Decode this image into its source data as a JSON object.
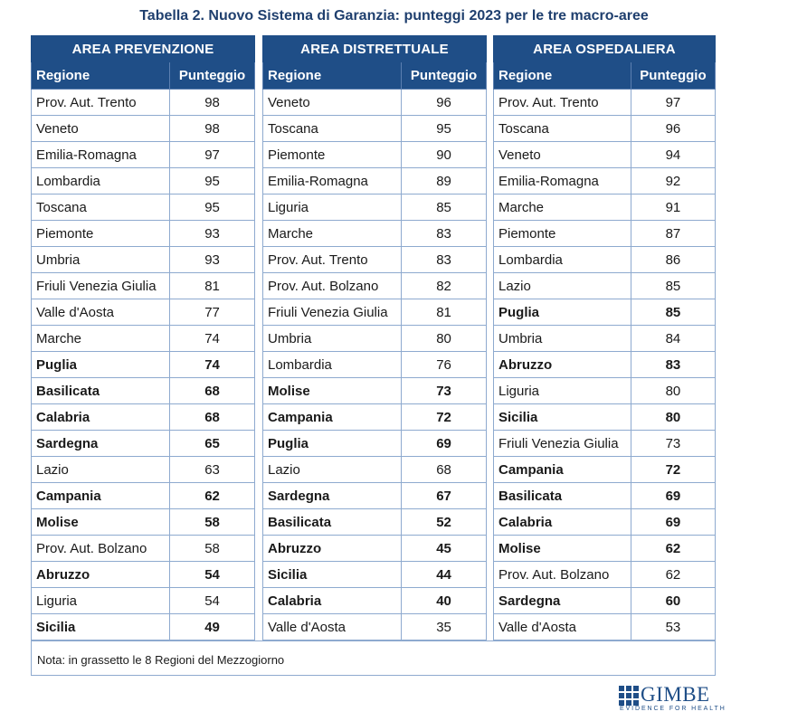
{
  "title": "Tabella 2. Nuovo Sistema di Garanzia: punteggi 2023 per le tre macro-aree",
  "column_headers": {
    "region": "Regione",
    "score": "Punteggio"
  },
  "areas": [
    {
      "name": "AREA PREVENZIONE",
      "rows": [
        {
          "region": "Prov. Aut. Trento",
          "score": "98",
          "bold": false
        },
        {
          "region": "Veneto",
          "score": "98",
          "bold": false
        },
        {
          "region": "Emilia-Romagna",
          "score": "97",
          "bold": false
        },
        {
          "region": "Lombardia",
          "score": "95",
          "bold": false
        },
        {
          "region": "Toscana",
          "score": "95",
          "bold": false
        },
        {
          "region": "Piemonte",
          "score": "93",
          "bold": false
        },
        {
          "region": "Umbria",
          "score": "93",
          "bold": false
        },
        {
          "region": "Friuli Venezia Giulia",
          "score": "81",
          "bold": false
        },
        {
          "region": "Valle d'Aosta",
          "score": "77",
          "bold": false
        },
        {
          "region": "Marche",
          "score": "74",
          "bold": false
        },
        {
          "region": "Puglia",
          "score": "74",
          "bold": true
        },
        {
          "region": "Basilicata",
          "score": "68",
          "bold": true
        },
        {
          "region": "Calabria",
          "score": "68",
          "bold": true
        },
        {
          "region": "Sardegna",
          "score": "65",
          "bold": true
        },
        {
          "region": "Lazio",
          "score": "63",
          "bold": false
        },
        {
          "region": "Campania",
          "score": "62",
          "bold": true
        },
        {
          "region": "Molise",
          "score": "58",
          "bold": true
        },
        {
          "region": "Prov. Aut. Bolzano",
          "score": "58",
          "bold": false
        },
        {
          "region": "Abruzzo",
          "score": "54",
          "bold": true
        },
        {
          "region": "Liguria",
          "score": "54",
          "bold": false
        },
        {
          "region": "Sicilia",
          "score": "49",
          "bold": true
        }
      ]
    },
    {
      "name": "AREA DISTRETTUALE",
      "rows": [
        {
          "region": "Veneto",
          "score": "96",
          "bold": false
        },
        {
          "region": "Toscana",
          "score": "95",
          "bold": false
        },
        {
          "region": "Piemonte",
          "score": "90",
          "bold": false
        },
        {
          "region": "Emilia-Romagna",
          "score": "89",
          "bold": false
        },
        {
          "region": "Liguria",
          "score": "85",
          "bold": false
        },
        {
          "region": "Marche",
          "score": "83",
          "bold": false
        },
        {
          "region": "Prov. Aut. Trento",
          "score": "83",
          "bold": false
        },
        {
          "region": "Prov. Aut. Bolzano",
          "score": "82",
          "bold": false
        },
        {
          "region": "Friuli Venezia Giulia",
          "score": "81",
          "bold": false
        },
        {
          "region": "Umbria",
          "score": "80",
          "bold": false
        },
        {
          "region": "Lombardia",
          "score": "76",
          "bold": false
        },
        {
          "region": "Molise",
          "score": "73",
          "bold": true
        },
        {
          "region": "Campania",
          "score": "72",
          "bold": true
        },
        {
          "region": "Puglia",
          "score": "69",
          "bold": true
        },
        {
          "region": "Lazio",
          "score": "68",
          "bold": false
        },
        {
          "region": "Sardegna",
          "score": "67",
          "bold": true
        },
        {
          "region": "Basilicata",
          "score": "52",
          "bold": true
        },
        {
          "region": "Abruzzo",
          "score": "45",
          "bold": true
        },
        {
          "region": "Sicilia",
          "score": "44",
          "bold": true
        },
        {
          "region": "Calabria",
          "score": "40",
          "bold": true
        },
        {
          "region": "Valle d'Aosta",
          "score": "35",
          "bold": false
        }
      ]
    },
    {
      "name": "AREA OSPEDALIERA",
      "rows": [
        {
          "region": "Prov. Aut. Trento",
          "score": "97",
          "bold": false
        },
        {
          "region": "Toscana",
          "score": "96",
          "bold": false
        },
        {
          "region": "Veneto",
          "score": "94",
          "bold": false
        },
        {
          "region": "Emilia-Romagna",
          "score": "92",
          "bold": false
        },
        {
          "region": "Marche",
          "score": "91",
          "bold": false
        },
        {
          "region": "Piemonte",
          "score": "87",
          "bold": false
        },
        {
          "region": "Lombardia",
          "score": "86",
          "bold": false
        },
        {
          "region": "Lazio",
          "score": "85",
          "bold": false
        },
        {
          "region": "Puglia",
          "score": "85",
          "bold": true
        },
        {
          "region": "Umbria",
          "score": "84",
          "bold": false
        },
        {
          "region": "Abruzzo",
          "score": "83",
          "bold": true
        },
        {
          "region": "Liguria",
          "score": "80",
          "bold": false
        },
        {
          "region": "Sicilia",
          "score": "80",
          "bold": true
        },
        {
          "region": "Friuli Venezia Giulia",
          "score": "73",
          "bold": false
        },
        {
          "region": "Campania",
          "score": "72",
          "bold": true
        },
        {
          "region": "Basilicata",
          "score": "69",
          "bold": true
        },
        {
          "region": "Calabria",
          "score": "69",
          "bold": true
        },
        {
          "region": "Molise",
          "score": "62",
          "bold": true
        },
        {
          "region": "Prov. Aut. Bolzano",
          "score": "62",
          "bold": false
        },
        {
          "region": "Sardegna",
          "score": "60",
          "bold": true
        },
        {
          "region": "Valle d'Aosta",
          "score": "53",
          "bold": false
        }
      ]
    }
  ],
  "note": "Nota: in grassetto le 8 Regioni del Mezzogiorno",
  "logo": {
    "name": "GIMBE",
    "tagline": "EVIDENCE FOR HEALTH",
    "color": "#1f4e87"
  }
}
